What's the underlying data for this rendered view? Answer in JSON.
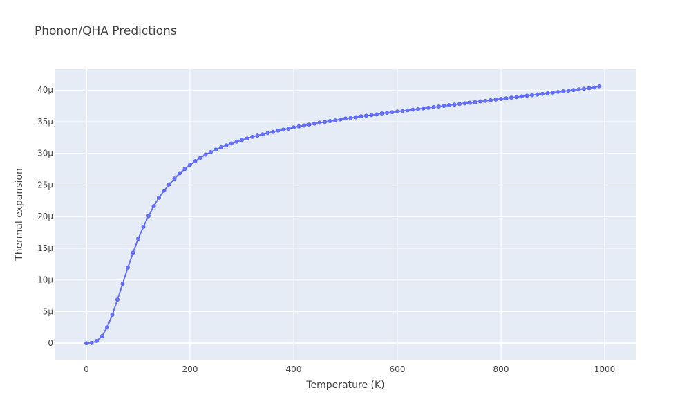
{
  "chart_data": {
    "type": "line",
    "title": "Phonon/QHA Predictions",
    "xlabel": "Temperature (K)",
    "ylabel": "Thermal expansion",
    "xlim": [
      -60,
      1060
    ],
    "ylim": [
      -2.6e-06,
      4.33e-05
    ],
    "x_ticks": [
      0,
      200,
      400,
      600,
      800,
      1000
    ],
    "x_tick_labels": [
      "0",
      "200",
      "400",
      "600",
      "800",
      "1000"
    ],
    "y_ticks": [
      0,
      5e-06,
      1e-05,
      1.5e-05,
      2e-05,
      2.5e-05,
      3e-05,
      3.5e-05,
      4e-05
    ],
    "y_tick_labels": [
      "0",
      "5μ",
      "10μ",
      "15μ",
      "20μ",
      "25μ",
      "30μ",
      "35μ",
      "40μ"
    ],
    "grid": true,
    "colors": {
      "series": "#636efa",
      "plot_bg": "#e5ecf6",
      "grid": "#ffffff",
      "text": "#444444"
    },
    "series": [
      {
        "x": [
          0,
          10,
          20,
          30,
          40,
          50,
          60,
          70,
          80,
          90,
          100,
          110,
          120,
          130,
          140,
          150,
          160,
          170,
          180,
          190,
          200,
          210,
          220,
          230,
          240,
          250,
          260,
          270,
          280,
          290,
          300,
          310,
          320,
          330,
          340,
          350,
          360,
          370,
          380,
          390,
          400,
          410,
          420,
          430,
          440,
          450,
          460,
          470,
          480,
          490,
          500,
          510,
          520,
          530,
          540,
          550,
          560,
          570,
          580,
          590,
          600,
          610,
          620,
          630,
          640,
          650,
          660,
          670,
          680,
          690,
          700,
          710,
          720,
          730,
          740,
          750,
          760,
          770,
          780,
          790,
          800,
          810,
          820,
          830,
          840,
          850,
          860,
          870,
          880,
          890,
          900,
          910,
          920,
          930,
          940,
          950,
          960,
          970,
          980,
          990
        ],
        "y": [
          0,
          5e-08,
          3.5e-07,
          1.1e-06,
          2.5e-06,
          4.5e-06,
          6.9e-06,
          9.4e-06,
          1.195e-05,
          1.43e-05,
          1.65e-05,
          1.84e-05,
          2.01e-05,
          2.165e-05,
          2.3e-05,
          2.41e-05,
          2.51e-05,
          2.6e-05,
          2.685e-05,
          2.755e-05,
          2.82e-05,
          2.875e-05,
          2.93e-05,
          2.98e-05,
          3.02e-05,
          3.06e-05,
          3.095e-05,
          3.125e-05,
          3.155e-05,
          3.185e-05,
          3.21e-05,
          3.235e-05,
          3.26e-05,
          3.28e-05,
          3.3e-05,
          3.32e-05,
          3.34e-05,
          3.36e-05,
          3.375e-05,
          3.39e-05,
          3.41e-05,
          3.425e-05,
          3.44e-05,
          3.455e-05,
          3.47e-05,
          3.485e-05,
          3.495e-05,
          3.51e-05,
          3.52e-05,
          3.535e-05,
          3.55e-05,
          3.56e-05,
          3.57e-05,
          3.585e-05,
          3.595e-05,
          3.605e-05,
          3.615e-05,
          3.63e-05,
          3.64e-05,
          3.65e-05,
          3.66e-05,
          3.67e-05,
          3.68e-05,
          3.69e-05,
          3.7e-05,
          3.71e-05,
          3.72e-05,
          3.73e-05,
          3.74e-05,
          3.75e-05,
          3.76e-05,
          3.77e-05,
          3.78e-05,
          3.79e-05,
          3.8e-05,
          3.81e-05,
          3.82e-05,
          3.83e-05,
          3.84e-05,
          3.85e-05,
          3.86e-05,
          3.87e-05,
          3.88e-05,
          3.89e-05,
          3.9e-05,
          3.91e-05,
          3.92e-05,
          3.93e-05,
          3.94e-05,
          3.95e-05,
          3.96e-05,
          3.97e-05,
          3.98e-05,
          3.99e-05,
          4e-05,
          4.01e-05,
          4.02e-05,
          4.03e-05,
          4.04e-05,
          4.06e-05
        ]
      }
    ]
  }
}
